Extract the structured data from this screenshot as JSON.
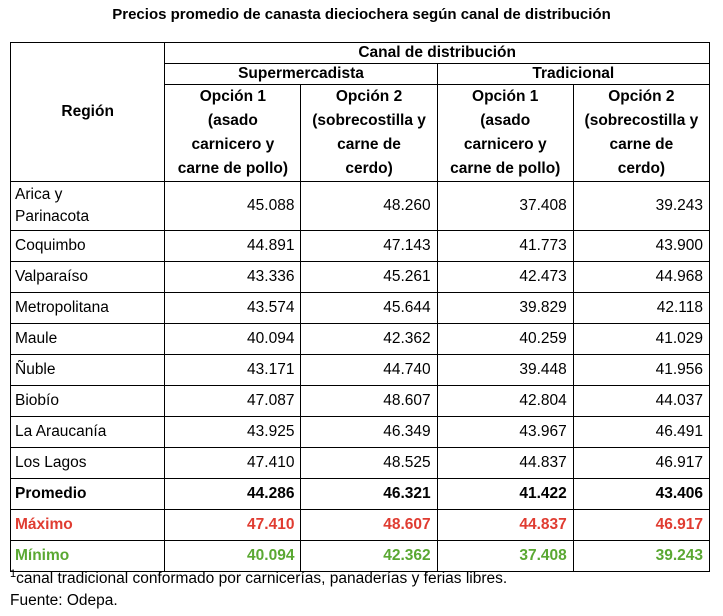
{
  "title": "Precios promedio de canasta dieciochera según canal de distribución",
  "header": {
    "region": "Región",
    "canal": "Canal de distribución",
    "supermercadista": "Supermercadista",
    "tradicional": "Tradicional",
    "sup_op1_line1": "Opción 1",
    "sup_op1_line2": "(asado",
    "sup_op1_line3": "carnicero y",
    "sup_op1_line4": "carne de pollo)",
    "sup_op2_line1": "Opción 2",
    "sup_op2_line2": "(sobrecostilla y",
    "sup_op2_line3": "carne de",
    "sup_op2_line4": "cerdo)",
    "tra_op1_line1": "Opción 1",
    "tra_op1_line2": "(asado",
    "tra_op1_line3": "carnicero y",
    "tra_op1_line4": "carne de pollo)",
    "tra_op2_line1": "Opción 2",
    "tra_op2_line2": "(sobrecostilla y",
    "tra_op2_line3": "carne de",
    "tra_op2_line4": "cerdo)"
  },
  "rows": [
    {
      "region_line1": "Arica y",
      "region_line2": "Parinacota",
      "v": [
        "45.088",
        "48.260",
        "37.408",
        "39.243"
      ]
    },
    {
      "region": "Coquimbo",
      "v": [
        "44.891",
        "47.143",
        "41.773",
        "43.900"
      ]
    },
    {
      "region": "Valparaíso",
      "v": [
        "43.336",
        "45.261",
        "42.473",
        "44.968"
      ]
    },
    {
      "region": "Metropolitana",
      "v": [
        "43.574",
        "45.644",
        "39.829",
        "42.118"
      ]
    },
    {
      "region": "Maule",
      "v": [
        "40.094",
        "42.362",
        "40.259",
        "41.029"
      ]
    },
    {
      "region": "Ñuble",
      "v": [
        "43.171",
        "44.740",
        "39.448",
        "41.956"
      ]
    },
    {
      "region": "Biobío",
      "v": [
        "47.087",
        "48.607",
        "42.804",
        "44.037"
      ]
    },
    {
      "region": "La Araucanía",
      "v": [
        "43.925",
        "46.349",
        "43.967",
        "46.491"
      ]
    },
    {
      "region": "Los Lagos",
      "v": [
        "47.410",
        "48.525",
        "44.837",
        "46.917"
      ]
    }
  ],
  "summary": {
    "promedio": {
      "label": "Promedio",
      "v": [
        "44.286",
        "46.321",
        "41.422",
        "43.406"
      ]
    },
    "maximo": {
      "label": "Máximo",
      "v": [
        "47.410",
        "48.607",
        "44.837",
        "46.917"
      ]
    },
    "minimo": {
      "label": "Mínimo",
      "v": [
        "40.094",
        "42.362",
        "37.408",
        "39.243"
      ]
    }
  },
  "colors": {
    "maximo": "#e03c31",
    "minimo": "#5aa832"
  },
  "footnote": {
    "marker": "1",
    "text": "canal tradicional conformado por carnicerías, panaderías y ferias libres.",
    "source": "Fuente: Odepa."
  }
}
